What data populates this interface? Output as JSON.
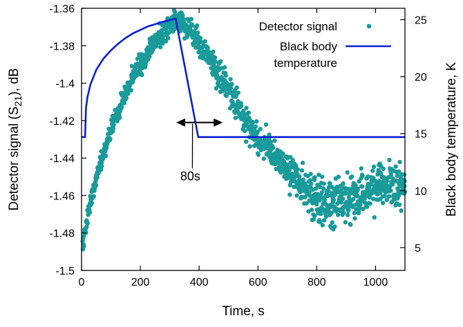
{
  "chart_data": {
    "type": "scatter",
    "xlabel": "Time, s",
    "ylabel_main": "Detector signal (S",
    "ylabel_sub": "21",
    "ylabel_tail": "), dB",
    "y2label": "Black body temperature, K",
    "xlim": [
      0,
      1100
    ],
    "ylim": [
      -1.5,
      -1.36
    ],
    "y2lim": [
      3,
      26
    ],
    "x_ticks": [
      0,
      200,
      400,
      600,
      800,
      1000
    ],
    "y_ticks": [
      -1.5,
      -1.48,
      -1.46,
      -1.44,
      -1.42,
      -1.4,
      -1.38,
      -1.36
    ],
    "y_tick_labels": [
      "-1.5",
      "-1.48",
      "-1.46",
      "-1.44",
      "-1.42",
      "-1.4",
      "-1.38",
      "-1.36"
    ],
    "y2_ticks": [
      5,
      10,
      15,
      20,
      25
    ],
    "legend_position": "top-right",
    "series": [
      {
        "name": "Detector signal",
        "kind": "scatter",
        "color": "#1a9a9a",
        "trend_x": [
          0,
          20,
          50,
          100,
          150,
          200,
          250,
          300,
          330,
          350,
          400,
          450,
          500,
          550,
          600,
          650,
          700,
          750,
          800,
          850,
          900,
          950,
          1000,
          1050,
          1100
        ],
        "trend_y": [
          -1.49,
          -1.472,
          -1.45,
          -1.425,
          -1.405,
          -1.39,
          -1.378,
          -1.369,
          -1.366,
          -1.368,
          -1.378,
          -1.39,
          -1.404,
          -1.418,
          -1.43,
          -1.438,
          -1.446,
          -1.455,
          -1.462,
          -1.465,
          -1.463,
          -1.46,
          -1.456,
          -1.455,
          -1.455
        ],
        "noise": [
          [
            0,
            0.004
          ],
          [
            200,
            0.005
          ],
          [
            400,
            0.006
          ],
          [
            700,
            0.007
          ],
          [
            800,
            0.011
          ],
          [
            1100,
            0.011
          ]
        ]
      },
      {
        "name": "Black body\ntemperature",
        "name_line1": "Black body",
        "name_line2": "temperature",
        "kind": "line",
        "axis": "right",
        "color": "#0a1fd6",
        "x": [
          0,
          12,
          15,
          20,
          30,
          50,
          75,
          100,
          125,
          150,
          175,
          200,
          225,
          250,
          275,
          300,
          320,
          397,
          400,
          1100
        ],
        "y": [
          14.7,
          14.7,
          17.2,
          18.2,
          19.3,
          20.6,
          21.6,
          22.3,
          22.9,
          23.4,
          23.8,
          24.1,
          24.4,
          24.6,
          24.8,
          24.95,
          25.1,
          14.7,
          14.7,
          14.7
        ]
      }
    ],
    "annotations": [
      {
        "text": "80s",
        "arrow_x": [
          322,
          480
        ],
        "arrow_y": -1.421,
        "label_x": 370,
        "label_y": -1.452
      }
    ]
  }
}
